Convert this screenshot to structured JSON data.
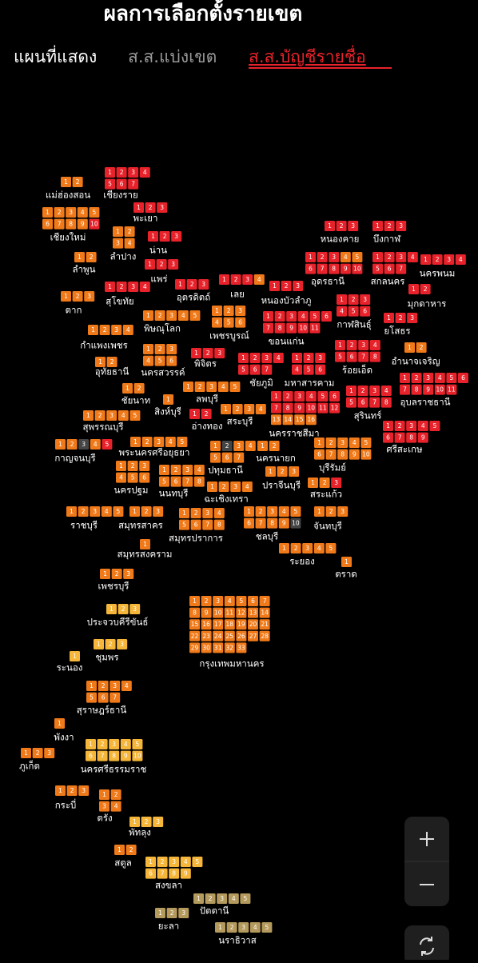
{
  "header": {
    "title": "ผลการเลือกตั้งรายเขต"
  },
  "tabs": [
    "แผนที่แสดง",
    "ส.ส.แบ่งเขต",
    "ส.ส.บัญชีรายชื่อ"
  ],
  "provinces": [
    {
      "name": "แม่ฮ่องสอน",
      "seats": [
        1,
        2
      ],
      "color": "#f07a1a"
    },
    {
      "name": "เชียงราย",
      "seats": [
        1,
        2,
        3,
        4,
        5,
        6,
        7
      ],
      "color": "#e8222a"
    },
    {
      "name": "เชียงใหม่",
      "seats": [
        1,
        2,
        3,
        4,
        5,
        6,
        7,
        8,
        9,
        10
      ],
      "color": "#f07a1a",
      "colors": [
        "#f07a1a",
        "#f07a1a",
        "#f07a1a",
        "#f07a1a",
        "#f07a1a",
        "#f07a1a",
        "#f07a1a",
        "#f07a1a",
        "#f07a1a",
        "#e8222a"
      ]
    },
    {
      "name": "พะเยา",
      "seats": [
        1,
        2,
        3
      ],
      "color": "#e8222a"
    },
    {
      "name": "ลำปาง",
      "seats": [
        1,
        2,
        3,
        4
      ],
      "color": "#f07a1a"
    },
    {
      "name": "น่าน",
      "seats": [
        1,
        2,
        3
      ],
      "color": "#e8222a"
    },
    {
      "name": "ลำพูน",
      "seats": [
        1,
        2
      ],
      "color": "#f07a1a"
    },
    {
      "name": "แพร่",
      "seats": [
        1,
        2,
        3
      ],
      "color": "#e8222a"
    },
    {
      "name": "สุโขทัย",
      "seats": [
        1,
        2,
        3,
        4
      ],
      "color": "#e8222a"
    },
    {
      "name": "ตาก",
      "seats": [
        1,
        2,
        3
      ],
      "color": "#f07a1a"
    },
    {
      "name": "อุตรดิตถ์",
      "seats": [
        1,
        2,
        3
      ],
      "color": "#e8222a"
    },
    {
      "name": "เลย",
      "seats": [
        1,
        2,
        3,
        4
      ],
      "color": "#e8222a",
      "colors": [
        "#e8222a",
        "#e8222a",
        "#e8222a",
        "#f07a1a"
      ]
    },
    {
      "name": "หนองบัวลำภู",
      "seats": [
        1,
        2,
        3
      ],
      "color": "#e8222a"
    },
    {
      "name": "หนองคาย",
      "seats": [
        1,
        2,
        3
      ],
      "color": "#e8222a"
    },
    {
      "name": "บึงกาฬ",
      "seats": [
        1,
        2,
        3
      ],
      "color": "#e8222a"
    },
    {
      "name": "อุดรธานี",
      "seats": [
        1,
        2,
        3,
        4,
        5,
        6,
        7,
        8,
        9,
        10
      ],
      "color": "#e8222a",
      "colors": [
        "#e8222a",
        "#e8222a",
        "#e8222a",
        "#f07a1a",
        "#f07a1a",
        "#e8222a",
        "#e8222a",
        "#e8222a",
        "#e8222a",
        "#e8222a"
      ]
    },
    {
      "name": "สกลนคร",
      "seats": [
        1,
        2,
        3,
        4,
        5,
        6,
        7
      ],
      "color": "#e8222a"
    },
    {
      "name": "นครพนม",
      "seats": [
        1,
        2,
        3,
        4
      ],
      "color": "#e8222a"
    },
    {
      "name": "มุกดาหาร",
      "seats": [
        1,
        2
      ],
      "color": "#e8222a"
    },
    {
      "name": "พิษณุโลก",
      "seats": [
        1,
        2,
        3,
        4,
        5
      ],
      "color": "#f07a1a"
    },
    {
      "name": "เพชรบูรณ์",
      "seats": [
        1,
        2,
        3,
        4,
        5,
        6
      ],
      "color": "#f07a1a"
    },
    {
      "name": "กาฬสินธุ์",
      "seats": [
        1,
        2,
        3,
        4,
        5,
        6
      ],
      "color": "#e8222a"
    },
    {
      "name": "ขอนแก่น",
      "seats": [
        1,
        2,
        3,
        4,
        5,
        6,
        7,
        8,
        9,
        10,
        11
      ],
      "color": "#e8222a"
    },
    {
      "name": "ยโสธร",
      "seats": [
        1,
        2,
        3
      ],
      "color": "#e8222a"
    },
    {
      "name": "กำแพงเพชร",
      "seats": [
        1,
        2,
        3,
        4
      ],
      "color": "#f07a1a"
    },
    {
      "name": "อุทัยธานี",
      "seats": [
        1,
        2
      ],
      "color": "#f07a1a"
    },
    {
      "name": "นครสวรรค์",
      "seats": [
        1,
        2,
        3,
        4,
        5,
        6
      ],
      "color": "#f07a1a"
    },
    {
      "name": "พิจิตร",
      "seats": [
        1,
        2,
        3
      ],
      "color": "#e8222a"
    },
    {
      "name": "ร้อยเอ็ด",
      "seats": [
        1,
        2,
        3,
        4,
        5,
        6,
        7,
        8
      ],
      "color": "#e8222a"
    },
    {
      "name": "อำนาจเจริญ",
      "seats": [
        1,
        2
      ],
      "color": "#f07a1a"
    },
    {
      "name": "ชัยภูมิ",
      "seats": [
        1,
        2,
        3,
        4,
        5,
        6,
        7
      ],
      "color": "#e8222a"
    },
    {
      "name": "มหาสารคาม",
      "seats": [
        1,
        2,
        3,
        4,
        5,
        6
      ],
      "color": "#e8222a"
    },
    {
      "name": "ชัยนาท",
      "seats": [
        1,
        2
      ],
      "color": "#f07a1a"
    },
    {
      "name": "สิงห์บุรี",
      "seats": [
        1
      ],
      "color": "#f07a1a"
    },
    {
      "name": "ลพบุรี",
      "seats": [
        1,
        2,
        3,
        4,
        5
      ],
      "color": "#f07a1a"
    },
    {
      "name": "อุบลราชธานี",
      "seats": [
        1,
        2,
        3,
        4,
        5,
        6,
        7,
        8,
        9,
        10,
        11
      ],
      "color": "#e8222a"
    },
    {
      "name": "สุรินทร์",
      "seats": [
        1,
        2,
        3,
        4,
        5,
        6,
        7,
        8
      ],
      "color": "#e8222a"
    },
    {
      "name": "นครราชสีมา",
      "seats": [
        1,
        2,
        3,
        4,
        5,
        6,
        7,
        8,
        9,
        10,
        11,
        12,
        13,
        14,
        15,
        16
      ],
      "color": "#e8222a",
      "colors": [
        "#e8222a",
        "#e8222a",
        "#e8222a",
        "#e8222a",
        "#e8222a",
        "#e8222a",
        "#e8222a",
        "#e8222a",
        "#e8222a",
        "#e8222a",
        "#e8222a",
        "#e8222a",
        "#f07a1a",
        "#f07a1a",
        "#f07a1a",
        "#f07a1a"
      ]
    },
    {
      "name": "อ่างทอง",
      "seats": [
        1,
        2
      ],
      "color": "#e8222a"
    },
    {
      "name": "สระบุรี",
      "seats": [
        1,
        2,
        3,
        4
      ],
      "color": "#f07a1a"
    },
    {
      "name": "สุพรรณบุรี",
      "seats": [
        1,
        2,
        3,
        4,
        5
      ],
      "color": "#f07a1a"
    },
    {
      "name": "ศรีสะเกษ",
      "seats": [
        1,
        2,
        3,
        4,
        5,
        6,
        7,
        8,
        9
      ],
      "color": "#e8222a"
    },
    {
      "name": "กาญจนบุรี",
      "seats": [
        1,
        2,
        3,
        4,
        5
      ],
      "color": "#f07a1a",
      "colors": [
        "#f07a1a",
        "#f07a1a",
        "#444444",
        "#f07a1a",
        "#e8222a"
      ]
    },
    {
      "name": "พระนครศรีอยุธยา",
      "seats": [
        1,
        2,
        3,
        4,
        5
      ],
      "color": "#f07a1a"
    },
    {
      "name": "ปทุมธานี",
      "seats": [
        1,
        2,
        3,
        4,
        5,
        6,
        7
      ],
      "color": "#f07a1a",
      "colors": [
        "#f07a1a",
        "#444444",
        "#f07a1a",
        "#f07a1a",
        "#f07a1a",
        "#f07a1a",
        "#f07a1a"
      ]
    },
    {
      "name": "นครนายก",
      "seats": [
        1,
        2
      ],
      "color": "#f07a1a"
    },
    {
      "name": "บุรีรัมย์",
      "seats": [
        1,
        2,
        3,
        4,
        5,
        6,
        7,
        8,
        9,
        10
      ],
      "color": "#f07a1a"
    },
    {
      "name": "นครปฐม",
      "seats": [
        1,
        2,
        3,
        4,
        5,
        6
      ],
      "color": "#f07a1a"
    },
    {
      "name": "นนทบุรี",
      "seats": [
        1,
        2,
        3,
        4,
        5,
        6,
        7,
        8
      ],
      "color": "#f07a1a"
    },
    {
      "name": "ฉะเชิงเทรา",
      "seats": [
        1,
        2,
        3,
        4
      ],
      "color": "#f07a1a"
    },
    {
      "name": "ปราจีนบุรี",
      "seats": [
        1,
        2,
        3
      ],
      "color": "#f07a1a"
    },
    {
      "name": "สระแก้ว",
      "seats": [
        1,
        2,
        3
      ],
      "color": "#f07a1a",
      "colors": [
        "#f07a1a",
        "#f07a1a",
        "#e8222a"
      ]
    },
    {
      "name": "ราชบุรี",
      "seats": [
        1,
        2,
        3,
        4,
        5
      ],
      "color": "#f07a1a"
    },
    {
      "name": "สมุทรสาคร",
      "seats": [
        1,
        2,
        3
      ],
      "color": "#f07a1a"
    },
    {
      "name": "สมุทรปราการ",
      "seats": [
        1,
        2,
        3,
        4,
        5,
        6,
        7,
        8
      ],
      "color": "#f07a1a"
    },
    {
      "name": "ชลบุรี",
      "seats": [
        1,
        2,
        3,
        4,
        5,
        6,
        7,
        8,
        9,
        10
      ],
      "color": "#f07a1a",
      "colors": [
        "#f07a1a",
        "#f07a1a",
        "#f07a1a",
        "#f07a1a",
        "#f07a1a",
        "#f07a1a",
        "#f07a1a",
        "#f07a1a",
        "#f07a1a",
        "#444444"
      ]
    },
    {
      "name": "จันทบุรี",
      "seats": [
        1,
        2,
        3
      ],
      "color": "#f07a1a"
    },
    {
      "name": "สมุทรสงคราม",
      "seats": [
        1
      ],
      "color": "#f07a1a"
    },
    {
      "name": "ระยอง",
      "seats": [
        1,
        2,
        3,
        4,
        5
      ],
      "color": "#f07a1a"
    },
    {
      "name": "ตราด",
      "seats": [
        1
      ],
      "color": "#f07a1a"
    },
    {
      "name": "เพชรบุรี",
      "seats": [
        1,
        2,
        3
      ],
      "color": "#f07a1a"
    },
    {
      "name": "กรุงเทพมหานคร",
      "seats": [
        1,
        2,
        3,
        4,
        5,
        6,
        7,
        8,
        9,
        10,
        11,
        12,
        13,
        14,
        15,
        16,
        17,
        18,
        19,
        20,
        21,
        22,
        23,
        24,
        25,
        26,
        27,
        28,
        29,
        30,
        31,
        32,
        33
      ],
      "color": "#f07a1a"
    },
    {
      "name": "ประจวบคีรีขันธ์",
      "seats": [
        1,
        2,
        3
      ],
      "color": "#f5b63a"
    },
    {
      "name": "ชุมพร",
      "seats": [
        1,
        2,
        3
      ],
      "color": "#f5b63a"
    },
    {
      "name": "ระนอง",
      "seats": [
        1
      ],
      "color": "#f5b63a"
    },
    {
      "name": "สุราษฎร์ธานี",
      "seats": [
        1,
        2,
        3,
        4,
        5,
        6,
        7
      ],
      "color": "#f07a1a"
    },
    {
      "name": "พังงา",
      "seats": [
        1
      ],
      "color": "#f07a1a"
    },
    {
      "name": "ภูเก็ต",
      "seats": [
        1,
        2,
        3
      ],
      "color": "#f07a1a"
    },
    {
      "name": "นครศรีธรรมราช",
      "seats": [
        1,
        2,
        3,
        4,
        5,
        6,
        7,
        8,
        9,
        10
      ],
      "color": "#f5b63a"
    },
    {
      "name": "กระบี่",
      "seats": [
        1,
        2,
        3
      ],
      "color": "#f07a1a"
    },
    {
      "name": "ตรัง",
      "seats": [
        1,
        2,
        3,
        4
      ],
      "color": "#f07a1a"
    },
    {
      "name": "พัทลุง",
      "seats": [
        1,
        2,
        3
      ],
      "color": "#f5b63a"
    },
    {
      "name": "สตูล",
      "seats": [
        1,
        2
      ],
      "color": "#f07a1a"
    },
    {
      "name": "สงขลา",
      "seats": [
        1,
        2,
        3,
        4,
        5,
        6,
        7,
        8,
        9
      ],
      "color": "#f5b63a"
    },
    {
      "name": "ปัตตานี",
      "seats": [
        1,
        2,
        3,
        4,
        5
      ],
      "color": "#b49a5c"
    },
    {
      "name": "ยะลา",
      "seats": [
        1,
        2,
        3
      ],
      "color": "#b49a5c"
    },
    {
      "name": "นราธิวาส",
      "seats": [
        1,
        2,
        3,
        4,
        5
      ],
      "color": "#b49a5c"
    }
  ]
}
